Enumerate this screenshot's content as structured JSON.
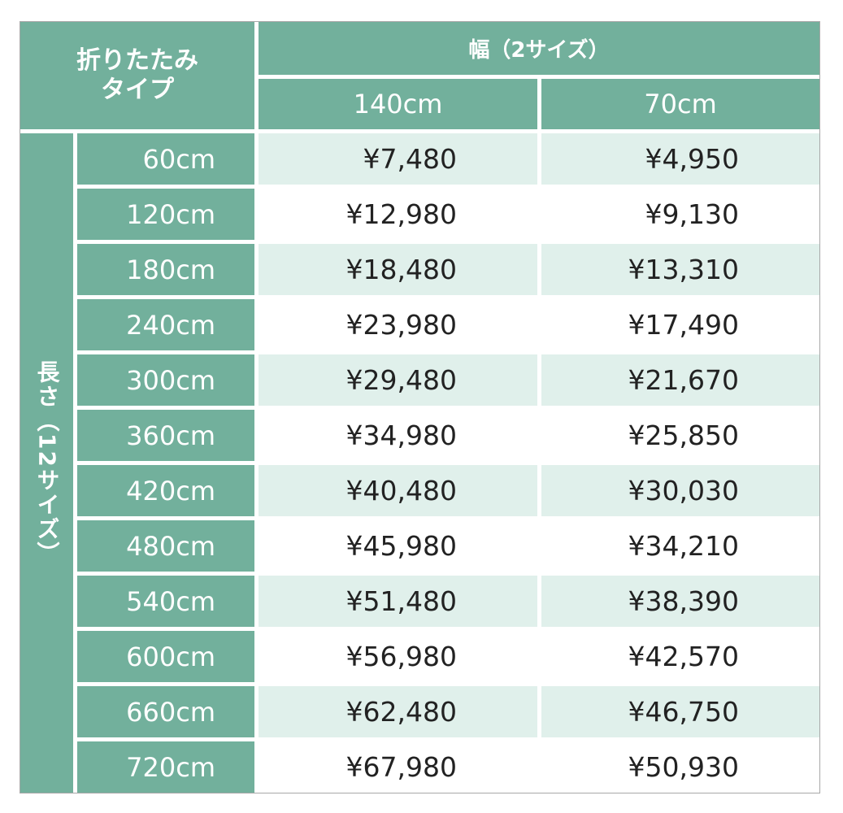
{
  "header": {
    "corner": [
      "折りたたみ",
      "タイプ"
    ],
    "width_label": "幅（2サイズ）",
    "widths": [
      "140cm",
      "70cm"
    ],
    "length_label": "長さ（12サイズ）"
  },
  "colors": {
    "header": "#72b09c",
    "row_alt": "#e0f0eb",
    "text": "#222222"
  },
  "rows": [
    {
      "length": "60cm",
      "p140": "¥7,480",
      "p70": "¥4,950"
    },
    {
      "length": "120cm",
      "p140": "¥12,980",
      "p70": "¥9,130"
    },
    {
      "length": "180cm",
      "p140": "¥18,480",
      "p70": "¥13,310"
    },
    {
      "length": "240cm",
      "p140": "¥23,980",
      "p70": "¥17,490"
    },
    {
      "length": "300cm",
      "p140": "¥29,480",
      "p70": "¥21,670"
    },
    {
      "length": "360cm",
      "p140": "¥34,980",
      "p70": "¥25,850"
    },
    {
      "length": "420cm",
      "p140": "¥40,480",
      "p70": "¥30,030"
    },
    {
      "length": "480cm",
      "p140": "¥45,980",
      "p70": "¥34,210"
    },
    {
      "length": "540cm",
      "p140": "¥51,480",
      "p70": "¥38,390"
    },
    {
      "length": "600cm",
      "p140": "¥56,980",
      "p70": "¥42,570"
    },
    {
      "length": "660cm",
      "p140": "¥62,480",
      "p70": "¥46,750"
    },
    {
      "length": "720cm",
      "p140": "¥67,980",
      "p70": "¥50,930"
    }
  ]
}
